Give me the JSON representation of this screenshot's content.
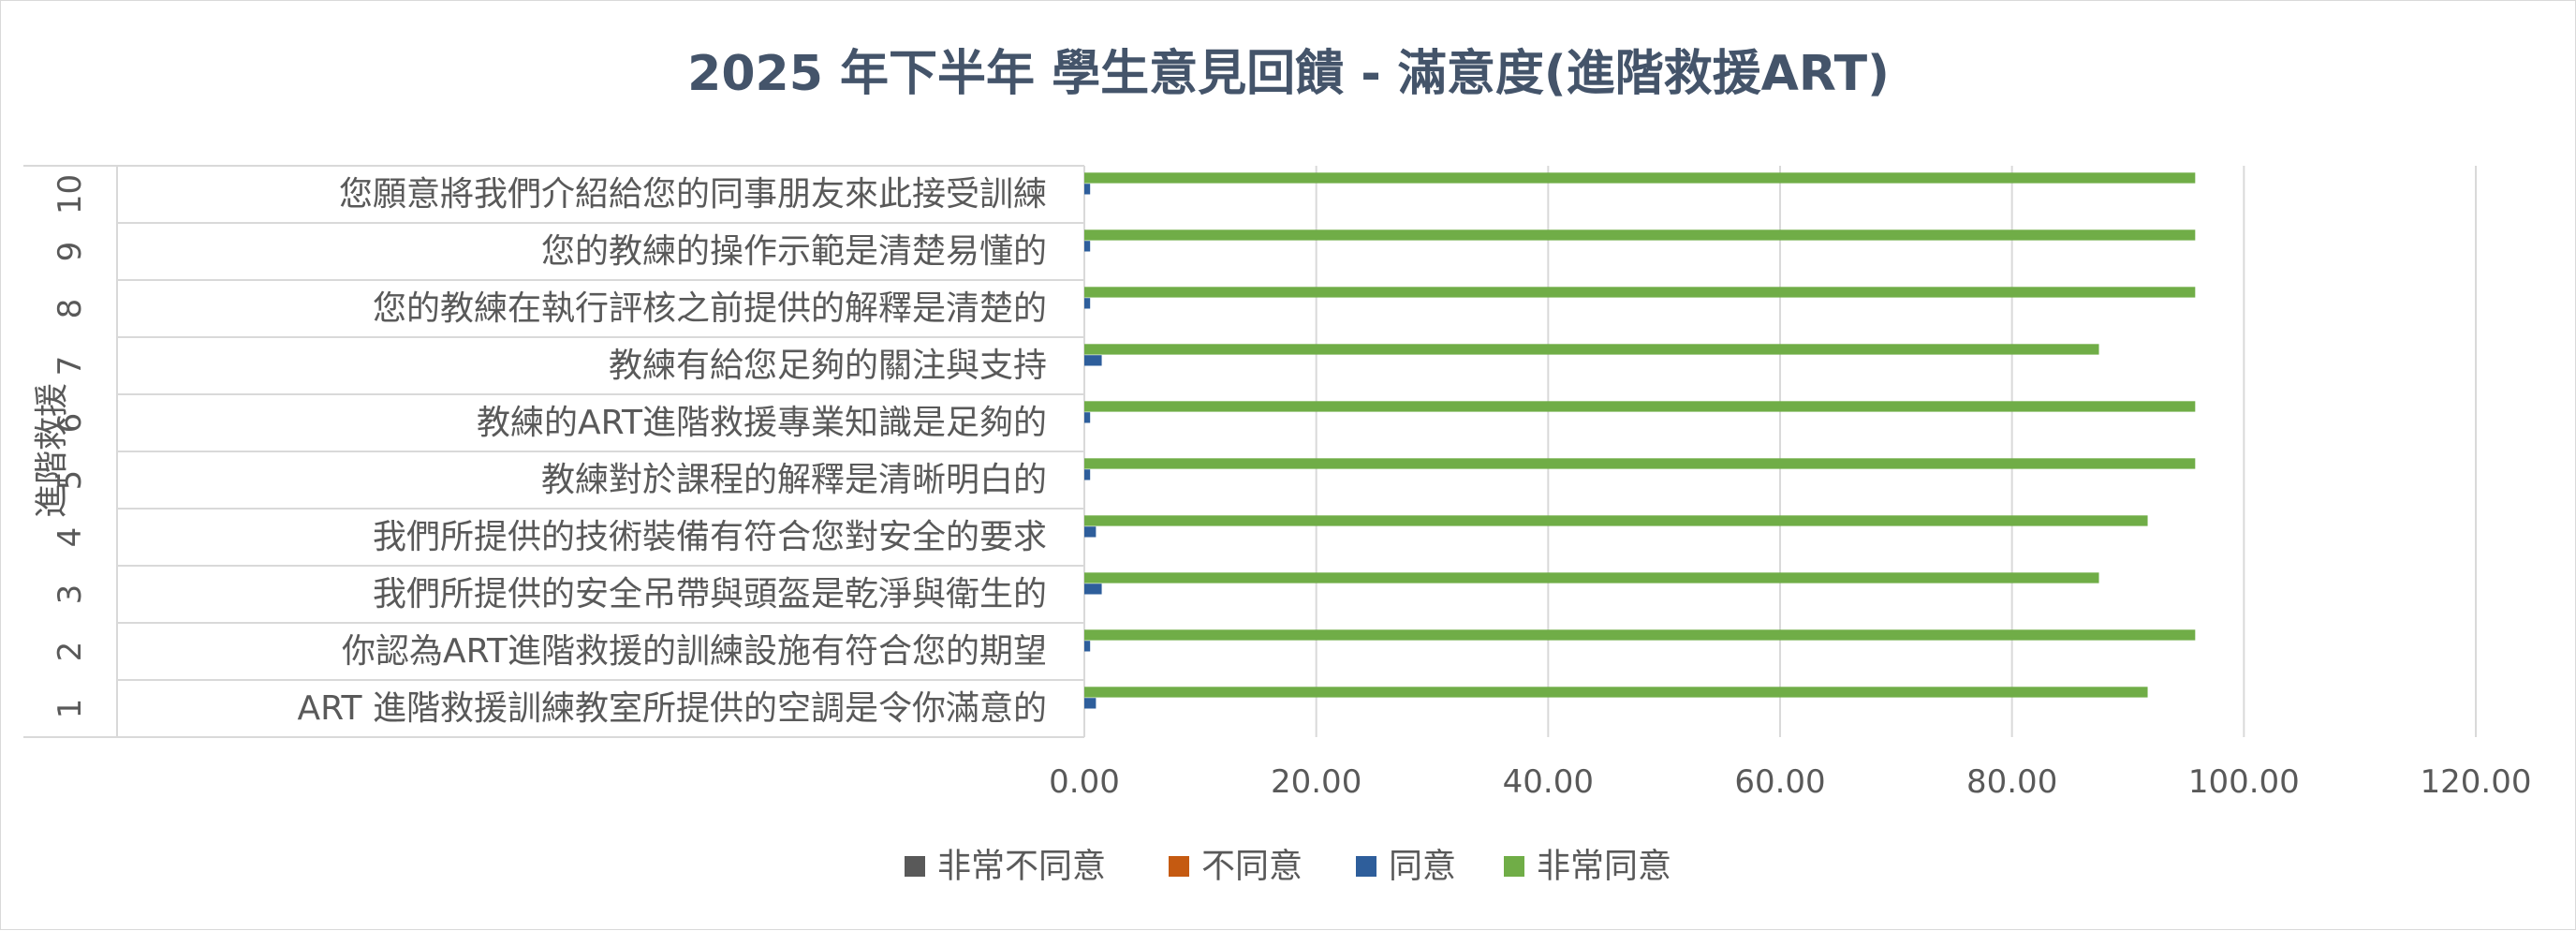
{
  "chart_data": {
    "type": "bar",
    "orientation": "horizontal",
    "title": "2025 年下半年 學生意見回饋 - 滿意度(進階救援ART)",
    "group_label": "進階救援",
    "numbers": [
      "1",
      "2",
      "3",
      "4",
      "5",
      "6",
      "7",
      "8",
      "9",
      "10"
    ],
    "categories": [
      "ART 進階救援訓練教室所提供的空調是令你滿意的",
      "你認為ART進階救援的訓練設施有符合您的期望",
      "我們所提供的安全吊帶與頭盔是乾淨與衛生的",
      "我們所提供的技術裝備有符合您對安全的要求",
      "教練對於課程的解釋是清晰明白的",
      "教練的ART進階救援專業知識是足夠的",
      "教練有給您足夠的關注與支持",
      "您的教練在執行評核之前提供的解釋是清楚的",
      "您的教練的操作示範是清楚易懂的",
      "您願意將我們介紹給您的同事朋友來此接受訓練"
    ],
    "series": [
      {
        "name": "非常不同意",
        "color": "#595959",
        "values": [
          0,
          0,
          0,
          0,
          0,
          0,
          0,
          0,
          0,
          0
        ]
      },
      {
        "name": "不同意",
        "color": "#c55a11",
        "values": [
          0,
          0,
          0,
          0,
          0,
          0,
          0,
          0,
          0,
          0
        ]
      },
      {
        "name": "同意",
        "color": "#2e5e9b",
        "values": [
          1.0,
          0.5,
          1.5,
          1.0,
          0.5,
          0.5,
          1.5,
          0.5,
          0.5,
          0.5
        ]
      },
      {
        "name": "非常同意",
        "color": "#70ad47",
        "values": [
          91.7,
          95.8,
          87.5,
          91.7,
          95.8,
          95.8,
          87.5,
          95.8,
          95.8,
          95.8
        ]
      }
    ],
    "xlim": [
      0,
      120
    ],
    "xticks": [
      "0.00",
      "20.00",
      "40.00",
      "60.00",
      "80.00",
      "100.00",
      "120.00"
    ],
    "xtick_values": [
      0,
      20,
      40,
      60,
      80,
      100,
      120
    ],
    "grid": true,
    "legend_position": "bottom"
  }
}
